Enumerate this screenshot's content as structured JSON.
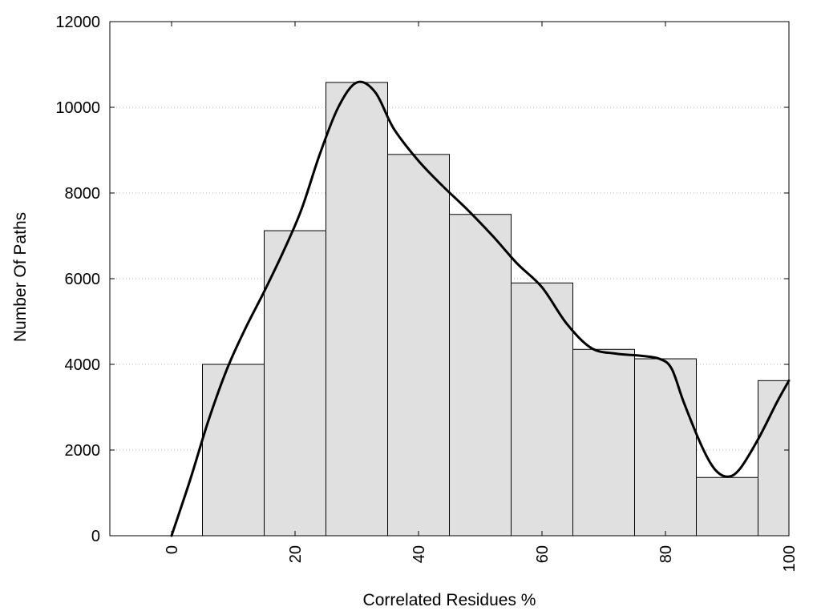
{
  "chart_data": {
    "type": "bar",
    "title": "",
    "xlabel": "Correlated Residues %",
    "ylabel": "Number Of Paths",
    "xlim": [
      -10,
      100
    ],
    "ylim": [
      0,
      12000
    ],
    "x_ticks": [
      0,
      20,
      40,
      60,
      80,
      100
    ],
    "x_tick_labels": [
      "0",
      "20",
      "40",
      "60",
      "80",
      "100"
    ],
    "y_ticks": [
      0,
      2000,
      4000,
      6000,
      8000,
      10000,
      12000
    ],
    "y_tick_labels": [
      "0",
      "2000",
      "4000",
      "6000",
      "8000",
      "10000",
      "12000"
    ],
    "grid": "horizontal-dotted",
    "bar_width": 10,
    "bar_color": "#e0e0e0",
    "bar_edge_color": "#000000",
    "bars": [
      {
        "x": 10,
        "value": 4000
      },
      {
        "x": 20,
        "value": 7120
      },
      {
        "x": 30,
        "value": 10580
      },
      {
        "x": 40,
        "value": 8900
      },
      {
        "x": 50,
        "value": 7500
      },
      {
        "x": 60,
        "value": 5900
      },
      {
        "x": 70,
        "value": 4350
      },
      {
        "x": 80,
        "value": 4130
      },
      {
        "x": 90,
        "value": 1360
      },
      {
        "x": 100,
        "value": 3620
      }
    ],
    "curve": {
      "type": "line",
      "color": "#000000",
      "points": [
        [
          0,
          0
        ],
        [
          3,
          1300
        ],
        [
          6,
          2700
        ],
        [
          9,
          3900
        ],
        [
          12,
          4850
        ],
        [
          15,
          5700
        ],
        [
          18,
          6600
        ],
        [
          21,
          7600
        ],
        [
          24,
          8900
        ],
        [
          27,
          10000
        ],
        [
          30,
          10580
        ],
        [
          33,
          10350
        ],
        [
          36,
          9500
        ],
        [
          40,
          8750
        ],
        [
          44,
          8150
        ],
        [
          48,
          7600
        ],
        [
          52,
          7000
        ],
        [
          56,
          6350
        ],
        [
          60,
          5800
        ],
        [
          64,
          4950
        ],
        [
          68,
          4380
        ],
        [
          72,
          4250
        ],
        [
          76,
          4200
        ],
        [
          79,
          4130
        ],
        [
          81,
          3900
        ],
        [
          83,
          3100
        ],
        [
          86,
          2050
        ],
        [
          88,
          1550
        ],
        [
          90,
          1380
        ],
        [
          92,
          1550
        ],
        [
          95,
          2250
        ],
        [
          98,
          3100
        ],
        [
          100,
          3620
        ]
      ]
    }
  }
}
